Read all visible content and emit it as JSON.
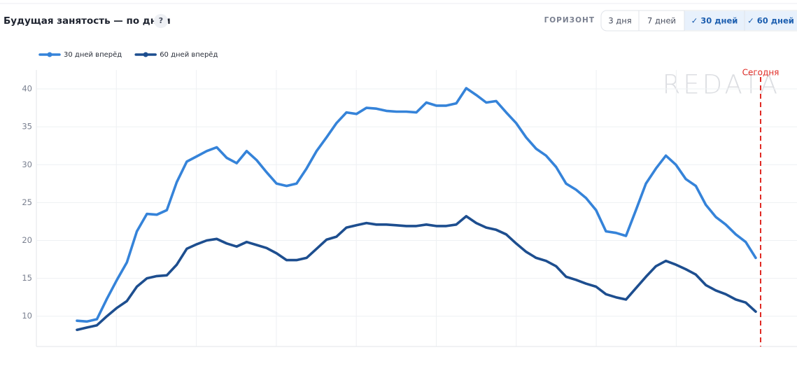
{
  "header": {
    "help_icon": "?"
  },
  "controls": {
    "label": "ГОРИЗОНТ",
    "buttons": [
      {
        "label": "3 дня",
        "selected": false
      },
      {
        "label": "7 дней",
        "selected": false
      },
      {
        "label": "✓ 30 дней",
        "selected": true
      },
      {
        "label": "✓ 60 дней",
        "selected": true
      }
    ]
  },
  "chart_data": {
    "type": "line",
    "title": "Будущая занятость — по дням",
    "categories": [
      null,
      null,
      null,
      null,
      null,
      null,
      null,
      null,
      null,
      null,
      null,
      null,
      null,
      null,
      null,
      null,
      null,
      null,
      null,
      null,
      null,
      null,
      null,
      null,
      null,
      null,
      null,
      null,
      null,
      null,
      null,
      null,
      null,
      null,
      null,
      null,
      null,
      null,
      null,
      null,
      null,
      null,
      null,
      null,
      null,
      null,
      null,
      null,
      null,
      null,
      null,
      null,
      null,
      null,
      null,
      null,
      null,
      null,
      null,
      null,
      null,
      null,
      null,
      null,
      null,
      null,
      null,
      null,
      null
    ],
    "series": [
      {
        "name": "30 дней вперёд",
        "color": "#3583d9",
        "values": [
          9.4,
          9.3,
          9.6,
          12.3,
          14.8,
          17.1,
          21.2,
          23.5,
          23.4,
          24.0,
          27.7,
          30.4,
          31.1,
          31.8,
          32.3,
          30.9,
          30.2,
          31.8,
          30.6,
          29.0,
          27.5,
          27.2,
          27.5,
          29.5,
          31.8,
          33.6,
          35.5,
          36.9,
          36.7,
          37.5,
          37.4,
          37.1,
          37.0,
          37.0,
          36.9,
          38.2,
          37.8,
          37.8,
          38.1,
          40.1,
          39.2,
          38.2,
          38.4,
          36.9,
          35.5,
          33.6,
          32.1,
          31.2,
          29.7,
          27.5,
          26.7,
          25.6,
          24.0,
          21.2,
          21.0,
          20.6,
          24.0,
          27.5,
          29.5,
          31.2,
          30.0,
          28.1,
          27.2,
          24.7,
          23.1,
          22.1,
          20.8,
          19.8,
          17.7
        ]
      },
      {
        "name": "60 дней вперёд",
        "color": "#1d4e8f",
        "values": [
          8.2,
          8.5,
          8.8,
          10.0,
          11.1,
          12.0,
          13.9,
          15.0,
          15.3,
          15.4,
          16.8,
          18.9,
          19.5,
          20.0,
          20.2,
          19.6,
          19.2,
          19.8,
          19.4,
          19.0,
          18.3,
          17.4,
          17.4,
          17.7,
          18.9,
          20.1,
          20.5,
          21.7,
          22.0,
          22.3,
          22.1,
          22.1,
          22.0,
          21.9,
          21.9,
          22.1,
          21.9,
          21.9,
          22.1,
          23.2,
          22.3,
          21.7,
          21.4,
          20.8,
          19.6,
          18.5,
          17.7,
          17.3,
          16.6,
          15.2,
          14.8,
          14.3,
          13.9,
          12.9,
          12.5,
          12.2,
          13.7,
          15.2,
          16.6,
          17.3,
          16.8,
          16.2,
          15.5,
          14.1,
          13.4,
          12.9,
          12.2,
          11.8,
          10.6
        ]
      }
    ],
    "ylim": [
      6,
      42.5
    ],
    "yticks": [
      10,
      15,
      20,
      25,
      30,
      35,
      40
    ],
    "grid": true,
    "legend": "top-left",
    "annotation": {
      "text": "Сегодня",
      "color": "#e02b25"
    },
    "watermark": "REDATA"
  }
}
